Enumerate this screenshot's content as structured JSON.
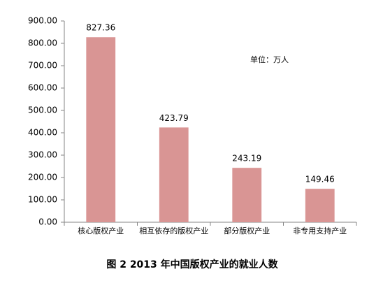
{
  "chart_data": {
    "type": "bar",
    "title": "图 2 2013 年中国版权产业的就业人数",
    "annotation": "单位：万人",
    "categories": [
      "核心版权产业",
      "相互依存的版权产业",
      "部分版权产业",
      "非专用支持产业"
    ],
    "values": [
      827.36,
      423.79,
      243.19,
      149.46
    ],
    "color": "#d99594",
    "ylim": [
      0,
      900
    ],
    "yticks": [
      {
        "value": 0,
        "label": "0.00"
      },
      {
        "value": 100,
        "label": "100.00"
      },
      {
        "value": 200,
        "label": "200.00"
      },
      {
        "value": 300,
        "label": "300.00"
      },
      {
        "value": 400,
        "label": "400.00"
      },
      {
        "value": 500,
        "label": "500.00"
      },
      {
        "value": 600,
        "label": "600.00"
      },
      {
        "value": 700,
        "label": "700.00"
      },
      {
        "value": 800,
        "label": "800.00"
      },
      {
        "value": 900,
        "label": "900.00"
      }
    ],
    "grid": false
  }
}
